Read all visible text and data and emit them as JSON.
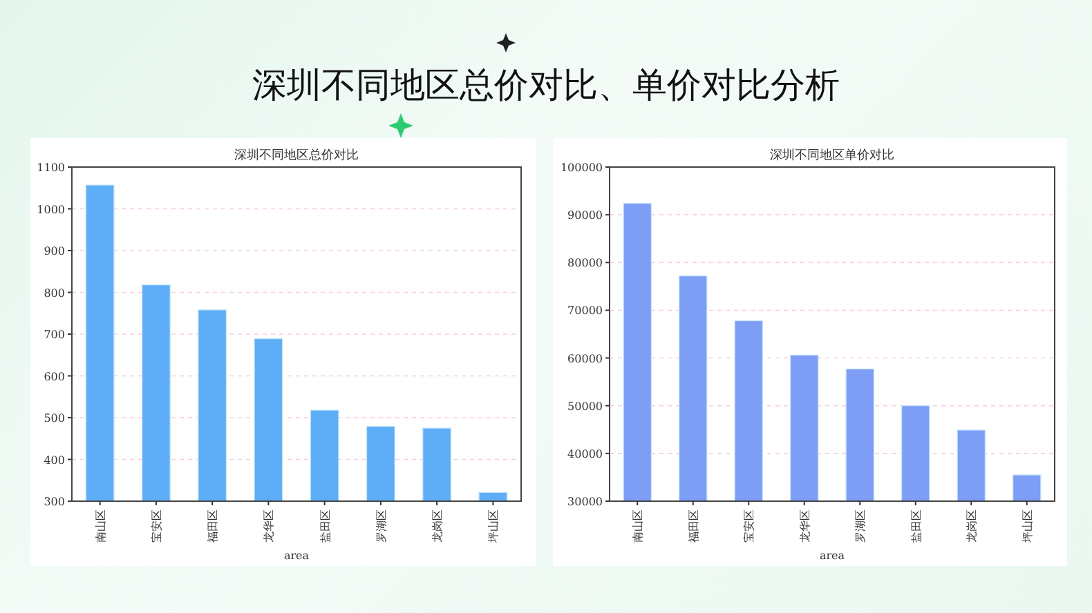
{
  "chart_data": [
    {
      "type": "bar",
      "title": "深圳不同地区总价对比",
      "xlabel": "area",
      "annotations": [
        "深圳不同地区总价对比、单价对比分析"
      ],
      "categories": [
        "南山区",
        "宝安区",
        "福田区",
        "龙华区",
        "盐田区",
        "罗湖区",
        "龙岗区",
        "坪山区"
      ],
      "series": [
        {
          "color": "#5eaef7",
          "values": [
            1057,
            818,
            758,
            689,
            518,
            479,
            475,
            321
          ]
        }
      ],
      "ylim": [
        300,
        1100
      ],
      "yticks": [
        300,
        400,
        500,
        600,
        700,
        800,
        900,
        1000,
        1100
      ],
      "grid": "y"
    },
    {
      "type": "bar",
      "title": "深圳不同地区单价对比",
      "xlabel": "area",
      "categories": [
        "南山区",
        "福田区",
        "宝安区",
        "龙华区",
        "罗湖区",
        "盐田区",
        "龙岗区",
        "坪山区"
      ],
      "series": [
        {
          "color": "#7e9df5",
          "values": [
            92400,
            77200,
            67800,
            60600,
            57700,
            50000,
            44900,
            35500
          ]
        }
      ],
      "ylim": [
        30000,
        100000
      ],
      "yticks": [
        30000,
        40000,
        50000,
        60000,
        70000,
        80000,
        90000,
        100000
      ],
      "grid": "y"
    }
  ]
}
